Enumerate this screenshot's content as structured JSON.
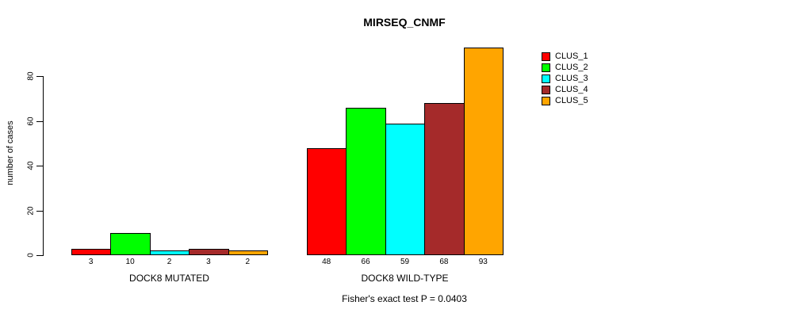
{
  "figure": {
    "title": "MIRSEQ_CNMF",
    "footnote": "Fisher's exact test P = 0.0403"
  },
  "chart_data": {
    "type": "bar",
    "title": "MIRSEQ_CNMF",
    "xlabel": "",
    "ylabel": "number of cases",
    "ylim": [
      0,
      95
    ],
    "yticks": [
      0,
      20,
      40,
      60,
      80
    ],
    "grid": false,
    "legend_position": "right",
    "categories": [
      "DOCK8 MUTATED",
      "DOCK8 WILD-TYPE"
    ],
    "series": [
      {
        "name": "CLUS_1",
        "color": "#FF0000",
        "values": [
          3,
          48
        ]
      },
      {
        "name": "CLUS_2",
        "color": "#00FF00",
        "values": [
          10,
          66
        ]
      },
      {
        "name": "CLUS_3",
        "color": "#00FFFF",
        "values": [
          2,
          59
        ]
      },
      {
        "name": "CLUS_4",
        "color": "#A52A2A",
        "values": [
          3,
          68
        ]
      },
      {
        "name": "CLUS_5",
        "color": "#FFA500",
        "values": [
          2,
          93
        ]
      }
    ],
    "bar_value_labels": [
      [
        "3",
        "10",
        "2",
        "3",
        "2"
      ],
      [
        "48",
        "66",
        "59",
        "68",
        "93"
      ]
    ],
    "annotation": "Fisher's exact test P = 0.0403"
  }
}
